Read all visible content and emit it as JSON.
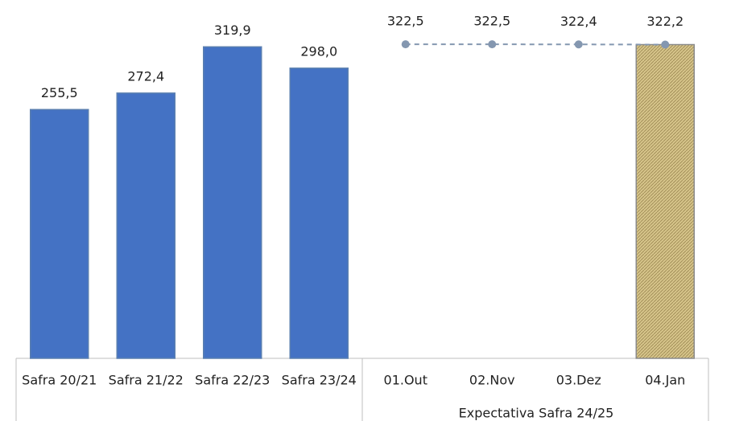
{
  "chart_data": {
    "type": "bar",
    "categories": [
      "Safra 20/21",
      "Safra 21/22",
      "Safra 22/23",
      "Safra 23/24",
      "01.Out",
      "02.Nov",
      "03.Dez",
      "04.Jan"
    ],
    "group_label": "Expectativa Safra 24/25",
    "ylim": [
      0,
      368
    ],
    "series": [
      {
        "type": "bar",
        "color": "#4472c4",
        "values": [
          255.5,
          272.4,
          319.9,
          298.0,
          null,
          null,
          null,
          null
        ],
        "value_labels": [
          "255,5",
          "272,4",
          "319,9",
          "298,0",
          null,
          null,
          null,
          null
        ]
      },
      {
        "type": "bar",
        "color": "#d6c48a",
        "hatch": true,
        "values": [
          null,
          null,
          null,
          null,
          null,
          null,
          null,
          322.2
        ]
      },
      {
        "type": "line",
        "color": "#8497b0",
        "dashed": true,
        "values": [
          null,
          null,
          null,
          null,
          322.5,
          322.5,
          322.4,
          322.2
        ],
        "value_labels": [
          null,
          null,
          null,
          null,
          "322,5",
          "322,5",
          "322,4",
          "322,2"
        ]
      }
    ]
  }
}
